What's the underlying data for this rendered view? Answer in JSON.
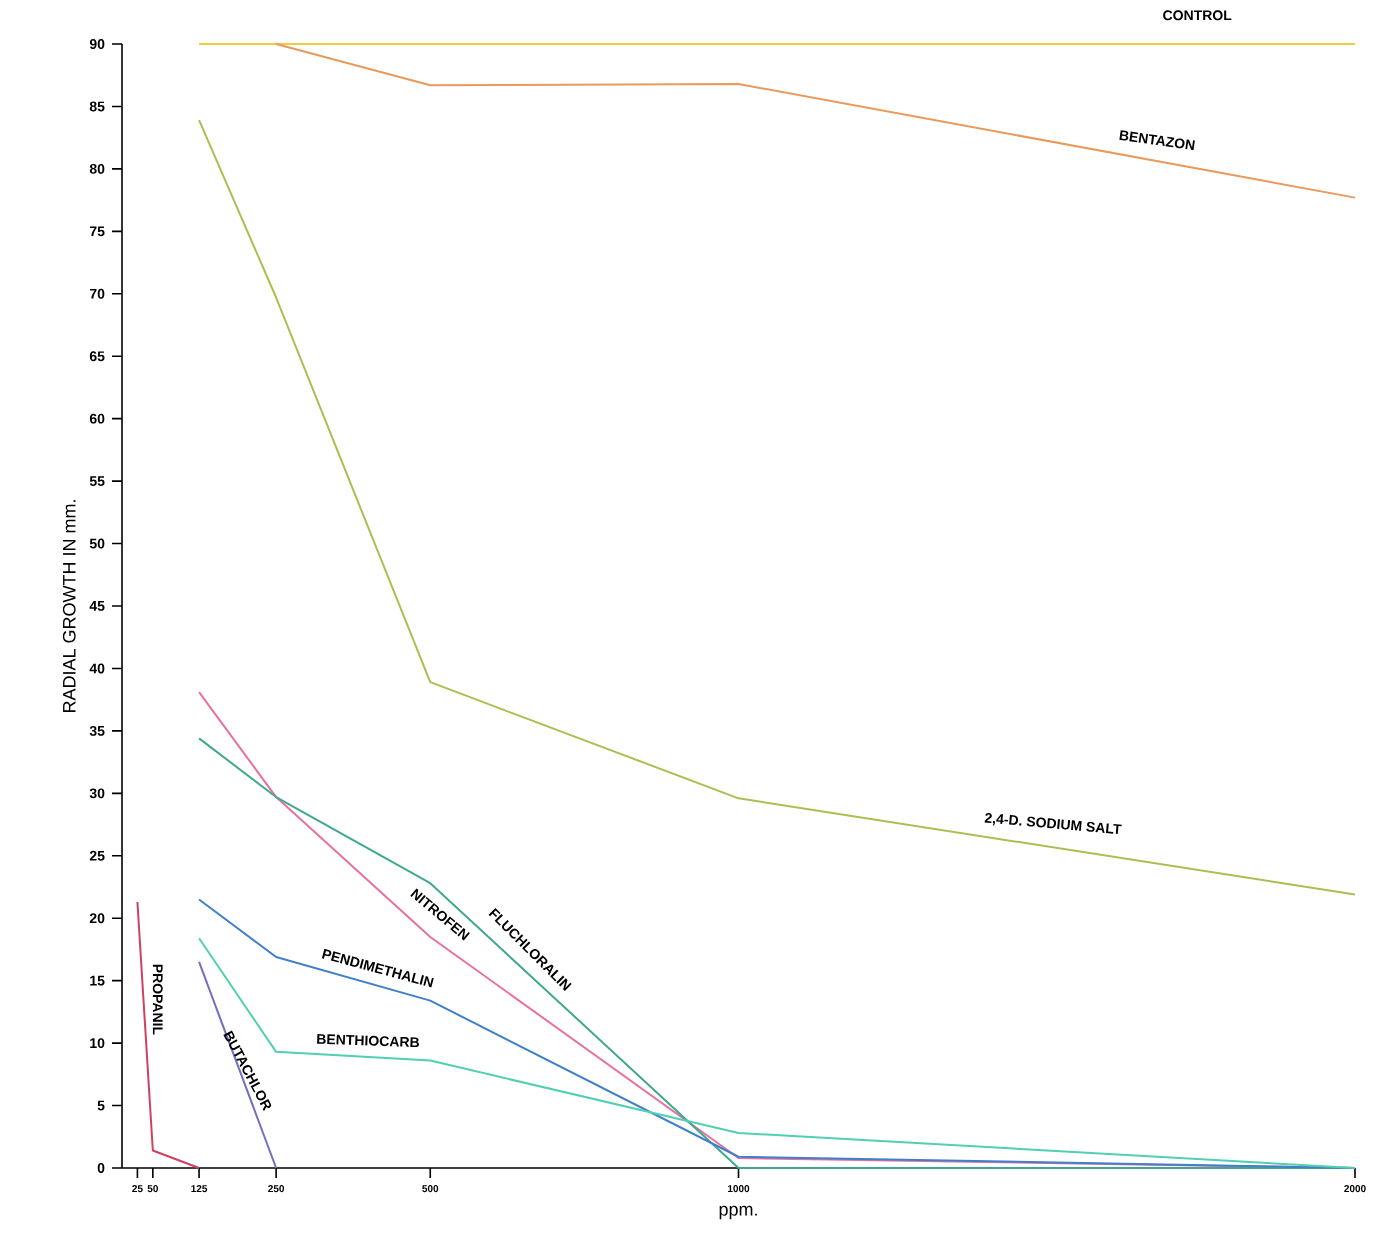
{
  "chart_data": {
    "type": "line",
    "xlabel": "ppm.",
    "ylabel": "RADIAL GROWTH IN mm.",
    "xlim": [
      0,
      2000
    ],
    "xticks": [
      25,
      50,
      125,
      250,
      500,
      1000,
      2000
    ],
    "ylim": [
      0,
      90
    ],
    "yticks": [
      0,
      5,
      10,
      15,
      20,
      25,
      30,
      35,
      40,
      45,
      50,
      55,
      60,
      65,
      70,
      75,
      80,
      85,
      90
    ],
    "grid": false,
    "legend": false,
    "marker": "none",
    "line_style": "solid",
    "series": [
      {
        "name": "CONTROL",
        "color": "#f0cc40",
        "x": [
          125,
          250,
          500,
          1000,
          2000
        ],
        "values": [
          90,
          90,
          90,
          90,
          90
        ]
      },
      {
        "name": "BENTAZON",
        "color": "#e89a5c",
        "x": [
          250,
          500,
          1000,
          2000
        ],
        "values": [
          90,
          86.7,
          86.8,
          77.7
        ]
      },
      {
        "name": "2,4-D. SODIUM SALT",
        "color": "#a8c050",
        "x": [
          125,
          250,
          500,
          1000,
          2000
        ],
        "values": [
          83.9,
          69.7,
          38.9,
          29.6,
          21.9
        ]
      },
      {
        "name": "NITROFEN",
        "color": "#e870a0",
        "x": [
          125,
          250,
          500,
          1000,
          2000
        ],
        "values": [
          38.1,
          29.7,
          18.5,
          0.8,
          0
        ]
      },
      {
        "name": "FLUCHLORALIN",
        "color": "#40a890",
        "x": [
          125,
          250,
          500,
          1000,
          2000
        ],
        "values": [
          34.4,
          29.7,
          22.8,
          0,
          0
        ]
      },
      {
        "name": "PENDIMETHALIN",
        "color": "#4080c8",
        "x": [
          125,
          250,
          500,
          1000,
          2000
        ],
        "values": [
          21.5,
          16.9,
          13.4,
          0.9,
          0
        ]
      },
      {
        "name": "BENTHIOCARB",
        "color": "#50d0b0",
        "x": [
          125,
          250,
          500,
          1000,
          2000
        ],
        "values": [
          18.4,
          9.3,
          8.6,
          2.8,
          0
        ]
      },
      {
        "name": "BUTACHLOR",
        "color": "#7070c0",
        "x": [
          125,
          250
        ],
        "values": [
          16.5,
          0
        ]
      },
      {
        "name": "PROPANIL",
        "color": "#d04060",
        "x": [
          25,
          50,
          125
        ],
        "values": [
          21.3,
          1.4,
          0
        ]
      }
    ]
  }
}
